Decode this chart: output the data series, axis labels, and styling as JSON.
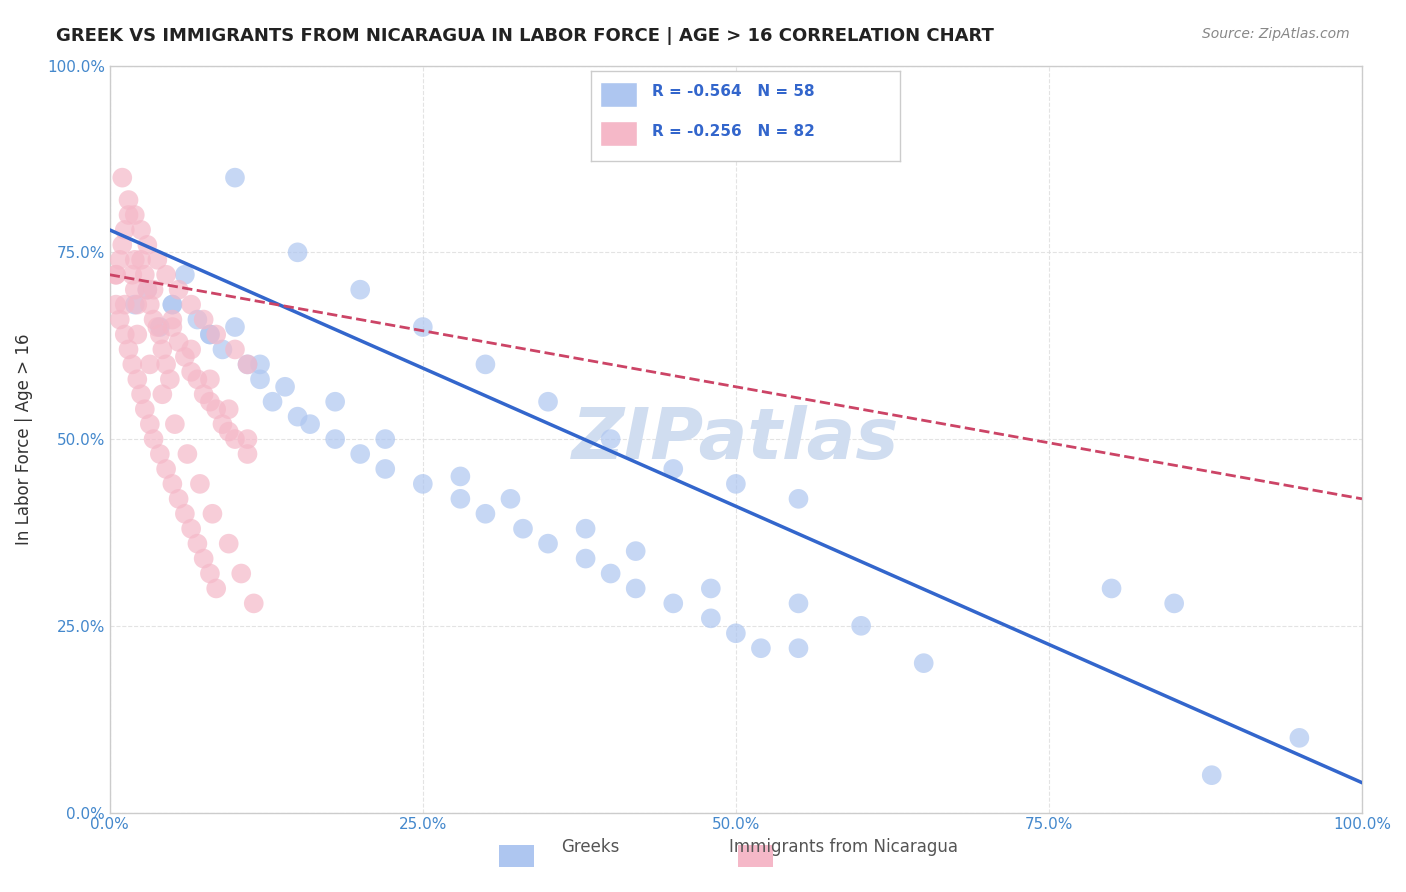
{
  "title": "GREEK VS IMMIGRANTS FROM NICARAGUA IN LABOR FORCE | AGE > 16 CORRELATION CHART",
  "source": "Source: ZipAtlas.com",
  "ylabel": "In Labor Force | Age > 16",
  "xlabel": "",
  "xlim": [
    0.0,
    1.0
  ],
  "ylim": [
    0.0,
    1.0
  ],
  "xticks": [
    0.0,
    0.25,
    0.5,
    0.75,
    1.0
  ],
  "yticks": [
    0.0,
    0.25,
    0.5,
    0.75,
    1.0
  ],
  "xticklabels": [
    "0.0%",
    "25.0%",
    "50.0%",
    "75.0%",
    "100.0%"
  ],
  "yticklabels": [
    "0.0%",
    "25.0%",
    "50.0%",
    "75.0%",
    "100.0%"
  ],
  "watermark": "ZIPatlas",
  "legend_items": [
    {
      "color": "#aec6f0",
      "label": "Greeks",
      "R": -0.564,
      "N": 58
    },
    {
      "color": "#f5b8c8",
      "label": "Immigrants from Nicaragua",
      "R": -0.256,
      "N": 82
    }
  ],
  "blue_scatter_x": [
    0.02,
    0.03,
    0.04,
    0.05,
    0.06,
    0.07,
    0.08,
    0.09,
    0.1,
    0.11,
    0.12,
    0.13,
    0.14,
    0.15,
    0.16,
    0.18,
    0.2,
    0.22,
    0.25,
    0.28,
    0.3,
    0.33,
    0.35,
    0.38,
    0.4,
    0.42,
    0.45,
    0.48,
    0.5,
    0.52,
    0.1,
    0.15,
    0.2,
    0.25,
    0.3,
    0.35,
    0.4,
    0.45,
    0.5,
    0.55,
    0.05,
    0.08,
    0.12,
    0.18,
    0.22,
    0.28,
    0.32,
    0.38,
    0.42,
    0.48,
    0.55,
    0.6,
    0.8,
    0.85,
    0.55,
    0.65,
    0.88,
    0.95
  ],
  "blue_scatter_y": [
    0.68,
    0.7,
    0.65,
    0.68,
    0.72,
    0.66,
    0.64,
    0.62,
    0.65,
    0.6,
    0.58,
    0.55,
    0.57,
    0.53,
    0.52,
    0.5,
    0.48,
    0.46,
    0.44,
    0.42,
    0.4,
    0.38,
    0.36,
    0.34,
    0.32,
    0.3,
    0.28,
    0.26,
    0.24,
    0.22,
    0.85,
    0.75,
    0.7,
    0.65,
    0.6,
    0.55,
    0.5,
    0.46,
    0.44,
    0.42,
    0.68,
    0.64,
    0.6,
    0.55,
    0.5,
    0.45,
    0.42,
    0.38,
    0.35,
    0.3,
    0.28,
    0.25,
    0.3,
    0.28,
    0.22,
    0.2,
    0.05,
    0.1
  ],
  "pink_scatter_x": [
    0.005,
    0.008,
    0.01,
    0.012,
    0.015,
    0.018,
    0.02,
    0.022,
    0.025,
    0.028,
    0.03,
    0.032,
    0.035,
    0.038,
    0.04,
    0.042,
    0.045,
    0.048,
    0.05,
    0.055,
    0.06,
    0.065,
    0.07,
    0.075,
    0.08,
    0.085,
    0.09,
    0.095,
    0.1,
    0.11,
    0.005,
    0.008,
    0.012,
    0.015,
    0.018,
    0.022,
    0.025,
    0.028,
    0.032,
    0.035,
    0.04,
    0.045,
    0.05,
    0.055,
    0.06,
    0.065,
    0.07,
    0.075,
    0.08,
    0.085,
    0.01,
    0.015,
    0.02,
    0.025,
    0.03,
    0.038,
    0.045,
    0.055,
    0.065,
    0.075,
    0.085,
    0.1,
    0.11,
    0.02,
    0.035,
    0.05,
    0.065,
    0.08,
    0.095,
    0.11,
    0.005,
    0.012,
    0.022,
    0.032,
    0.042,
    0.052,
    0.062,
    0.072,
    0.082,
    0.095,
    0.105,
    0.115
  ],
  "pink_scatter_y": [
    0.72,
    0.74,
    0.76,
    0.78,
    0.8,
    0.72,
    0.7,
    0.68,
    0.74,
    0.72,
    0.7,
    0.68,
    0.66,
    0.65,
    0.64,
    0.62,
    0.6,
    0.58,
    0.65,
    0.63,
    0.61,
    0.59,
    0.58,
    0.56,
    0.55,
    0.54,
    0.52,
    0.51,
    0.5,
    0.48,
    0.68,
    0.66,
    0.64,
    0.62,
    0.6,
    0.58,
    0.56,
    0.54,
    0.52,
    0.5,
    0.48,
    0.46,
    0.44,
    0.42,
    0.4,
    0.38,
    0.36,
    0.34,
    0.32,
    0.3,
    0.85,
    0.82,
    0.8,
    0.78,
    0.76,
    0.74,
    0.72,
    0.7,
    0.68,
    0.66,
    0.64,
    0.62,
    0.6,
    0.74,
    0.7,
    0.66,
    0.62,
    0.58,
    0.54,
    0.5,
    0.72,
    0.68,
    0.64,
    0.6,
    0.56,
    0.52,
    0.48,
    0.44,
    0.4,
    0.36,
    0.32,
    0.28
  ],
  "blue_line_x": [
    0.0,
    1.0
  ],
  "blue_line_y": [
    0.78,
    0.04
  ],
  "pink_line_x": [
    0.0,
    1.0
  ],
  "pink_line_y": [
    0.72,
    0.42
  ],
  "title_color": "#222222",
  "source_color": "#888888",
  "axis_color": "#cccccc",
  "grid_color": "#dddddd",
  "tick_color": "#4488cc",
  "blue_marker_color": "#aec6f0",
  "blue_line_color": "#3366cc",
  "pink_marker_color": "#f5b8c8",
  "pink_line_color": "#cc4466",
  "watermark_color": "#d0ddf0",
  "legend_text_color": "#3366cc"
}
